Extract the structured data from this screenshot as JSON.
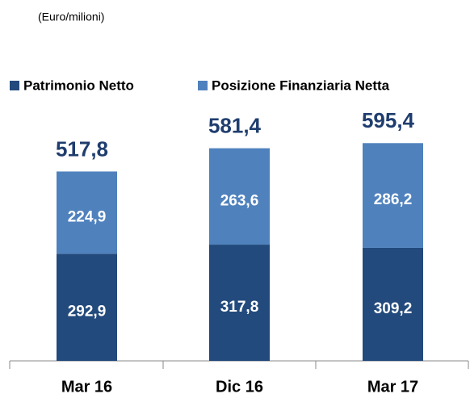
{
  "chart_data": {
    "type": "stacked_bar",
    "subtitle": "(Euro/milioni)",
    "categories": [
      "Mar 16",
      "Dic 16",
      "Mar 17"
    ],
    "series": [
      {
        "name": "Patrimonio Netto",
        "color": "#234a7c",
        "values": [
          292.9,
          317.8,
          309.2
        ],
        "value_labels": [
          "292,9",
          "317,8",
          "309,2"
        ]
      },
      {
        "name": "Posizione Finanziaria Netta",
        "color": "#4f81bd",
        "values": [
          224.9,
          263.6,
          286.2
        ],
        "value_labels": [
          "224,9",
          "263,6",
          "286,2"
        ]
      }
    ],
    "totals": [
      517.8,
      581.4,
      595.4
    ],
    "total_labels": [
      "517,8",
      "581,4",
      "595,4"
    ],
    "legend": "top"
  }
}
